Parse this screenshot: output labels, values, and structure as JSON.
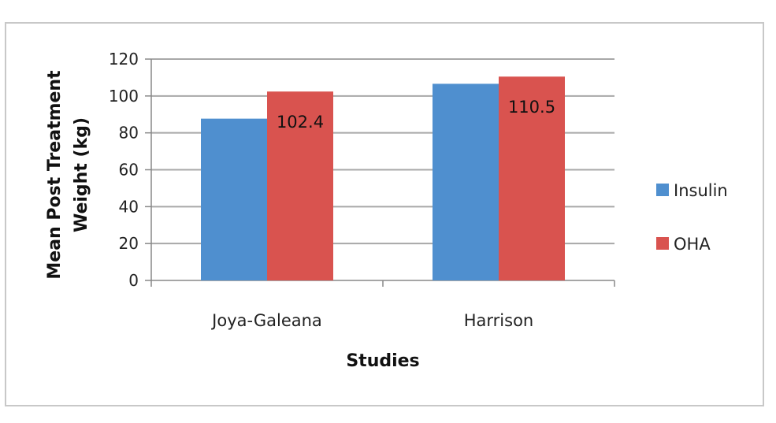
{
  "chart_data": {
    "type": "bar",
    "categories": [
      "Joya-Galeana",
      "Harrison"
    ],
    "series": [
      {
        "name": "Insulin",
        "values": [
          87.7,
          106.6
        ],
        "color": "#4f8fcf"
      },
      {
        "name": "OHA",
        "values": [
          102.4,
          110.5
        ],
        "color": "#d9534f"
      }
    ],
    "data_labels": [
      {
        "series": 1,
        "index": 0,
        "text": "102.4"
      },
      {
        "series": 1,
        "index": 1,
        "text": "110.5"
      }
    ],
    "xlabel": "Studies",
    "ylabel_lines": [
      "Mean Post Treatment",
      "Weight (kg)"
    ],
    "ylim": [
      0,
      120
    ],
    "yticks": [
      0,
      20,
      40,
      60,
      80,
      100,
      120
    ],
    "grid": true,
    "legend_position": "right"
  }
}
